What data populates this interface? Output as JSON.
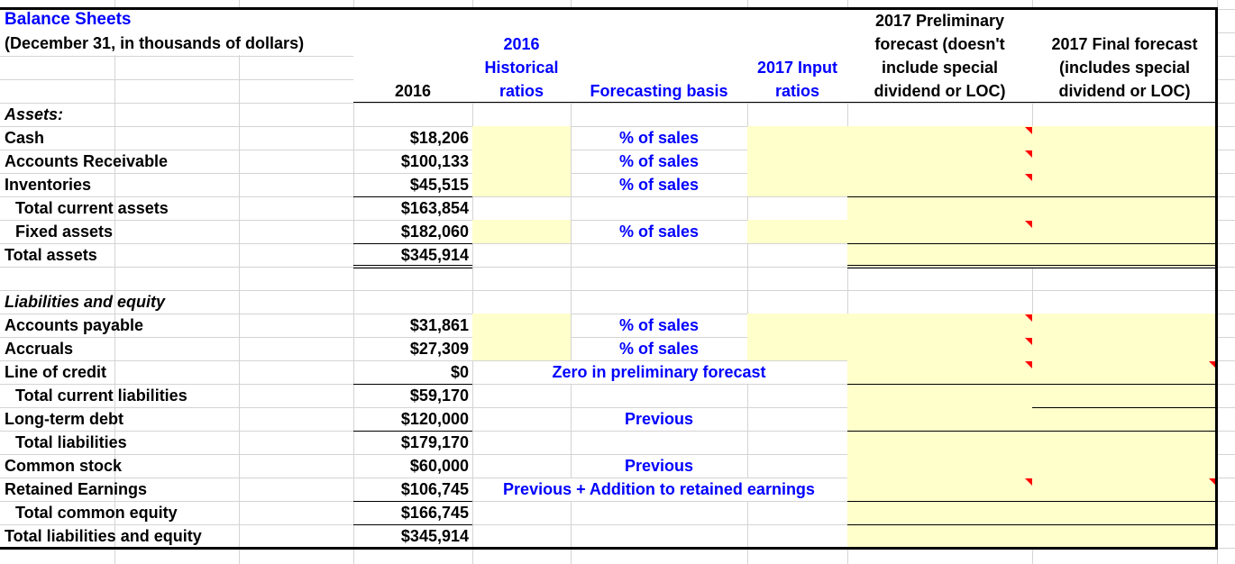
{
  "title": "Balance Sheets",
  "subtitle": "(December 31, in thousands of dollars)",
  "colors": {
    "accent_text": "#0000ff",
    "input_fill": "#ffffcc",
    "comment_marker": "#ff0000"
  },
  "headers": {
    "year_2016": "2016",
    "historical": [
      "2016",
      "Historical",
      "ratios"
    ],
    "basis": "Forecasting basis",
    "input": [
      "2017 Input",
      "ratios"
    ],
    "preliminary": [
      "2017 Preliminary",
      "forecast (doesn't",
      "include special",
      "dividend or LOC)"
    ],
    "final": [
      "2017 Final forecast",
      "(includes special",
      "dividend or LOC)"
    ]
  },
  "rows": [
    {
      "label": "Assets:",
      "italic": true
    },
    {
      "label": "Cash",
      "value": "$18,206",
      "basis": "% of sales"
    },
    {
      "label": "Accounts Receivable",
      "value": "$100,133",
      "basis": "% of sales"
    },
    {
      "label": "Inventories",
      "value": "$45,515",
      "basis": "% of sales"
    },
    {
      "label": "Total current assets",
      "indent": true,
      "value": "$163,854"
    },
    {
      "label": "Fixed assets",
      "indent": true,
      "value": "$182,060",
      "basis": "% of sales"
    },
    {
      "label": "Total assets",
      "value": "$345,914"
    },
    {
      "label": ""
    },
    {
      "label": "Liabilities and equity",
      "italic": true
    },
    {
      "label": "Accounts payable",
      "value": "$31,861",
      "basis": "% of sales"
    },
    {
      "label": "Accruals",
      "value": "$27,309",
      "basis": "% of sales"
    },
    {
      "label": "Line of credit",
      "value": "$0",
      "basis": "Zero in preliminary forecast"
    },
    {
      "label": "Total current liabilities",
      "indent": true,
      "value": "$59,170"
    },
    {
      "label": "Long-term debt",
      "value": "$120,000",
      "basis": "Previous"
    },
    {
      "label": "Total liabilities",
      "indent": true,
      "value": "$179,170"
    },
    {
      "label": "Common stock",
      "value": "$60,000",
      "basis": "Previous"
    },
    {
      "label": "Retained Earnings",
      "value": "$106,745",
      "basis": "Previous + Addition to retained earnings"
    },
    {
      "label": "Total common equity",
      "indent": true,
      "value": "$166,745"
    },
    {
      "label": "Total liabilities and equity",
      "value": "$345,914"
    }
  ]
}
